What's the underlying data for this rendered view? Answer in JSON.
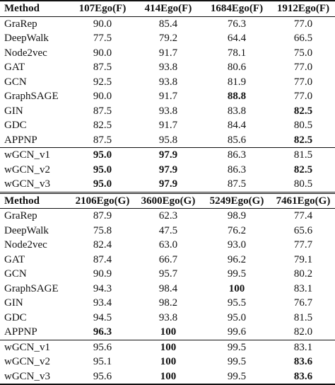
{
  "table1": {
    "headers": [
      "Method",
      "107Ego(F)",
      "414Ego(F)",
      "1684Ego(F)",
      "1912Ego(F)"
    ],
    "rows": [
      {
        "method": "GraRep",
        "values": [
          "90.0",
          "85.4",
          "76.3",
          "77.0"
        ],
        "bold": [
          false,
          false,
          false,
          false
        ]
      },
      {
        "method": "DeepWalk",
        "values": [
          "77.5",
          "79.2",
          "64.4",
          "66.5"
        ],
        "bold": [
          false,
          false,
          false,
          false
        ]
      },
      {
        "method": "Node2vec",
        "values": [
          "90.0",
          "91.7",
          "78.1",
          "75.0"
        ],
        "bold": [
          false,
          false,
          false,
          false
        ]
      },
      {
        "method": "GAT",
        "values": [
          "87.5",
          "93.8",
          "80.6",
          "77.0"
        ],
        "bold": [
          false,
          false,
          false,
          false
        ]
      },
      {
        "method": "GCN",
        "values": [
          "92.5",
          "93.8",
          "81.9",
          "77.0"
        ],
        "bold": [
          false,
          false,
          false,
          false
        ]
      },
      {
        "method": "GraphSAGE",
        "values": [
          "90.0",
          "91.7",
          "88.8",
          "77.0"
        ],
        "bold": [
          false,
          false,
          true,
          false
        ]
      },
      {
        "method": "GIN",
        "values": [
          "87.5",
          "93.8",
          "83.8",
          "82.5"
        ],
        "bold": [
          false,
          false,
          false,
          true
        ]
      },
      {
        "method": "GDC",
        "values": [
          "82.5",
          "91.7",
          "84.4",
          "80.5"
        ],
        "bold": [
          false,
          false,
          false,
          false
        ]
      },
      {
        "method": "APPNP",
        "values": [
          "87.5",
          "95.8",
          "85.6",
          "82.5"
        ],
        "bold": [
          false,
          false,
          false,
          true
        ]
      },
      {
        "method": "wGCN_v1",
        "values": [
          "95.0",
          "97.9",
          "86.3",
          "81.5"
        ],
        "bold": [
          true,
          true,
          false,
          false
        ]
      },
      {
        "method": "wGCN_v2",
        "values": [
          "95.0",
          "97.9",
          "86.3",
          "82.5"
        ],
        "bold": [
          true,
          true,
          false,
          true
        ]
      },
      {
        "method": "wGCN_v3",
        "values": [
          "95.0",
          "97.9",
          "87.5",
          "80.5"
        ],
        "bold": [
          true,
          true,
          false,
          false
        ]
      }
    ]
  },
  "table2": {
    "headers": [
      "Method",
      "2106Ego(G)",
      "3600Ego(G)",
      "5249Ego(G)",
      "7461Ego(G)"
    ],
    "rows": [
      {
        "method": "GraRep",
        "values": [
          "87.9",
          "62.3",
          "98.9",
          "77.4"
        ],
        "bold": [
          false,
          false,
          false,
          false
        ]
      },
      {
        "method": "DeepWalk",
        "values": [
          "75.8",
          "47.5",
          "76.2",
          "65.6"
        ],
        "bold": [
          false,
          false,
          false,
          false
        ]
      },
      {
        "method": "Node2vec",
        "values": [
          "82.4",
          "63.0",
          "93.0",
          "77.7"
        ],
        "bold": [
          false,
          false,
          false,
          false
        ]
      },
      {
        "method": "GAT",
        "values": [
          "87.4",
          "66.7",
          "96.2",
          "79.1"
        ],
        "bold": [
          false,
          false,
          false,
          false
        ]
      },
      {
        "method": "GCN",
        "values": [
          "90.9",
          "95.7",
          "99.5",
          "80.2"
        ],
        "bold": [
          false,
          false,
          false,
          false
        ]
      },
      {
        "method": "GraphSAGE",
        "values": [
          "94.3",
          "98.4",
          "100",
          "83.1"
        ],
        "bold": [
          false,
          false,
          true,
          false
        ]
      },
      {
        "method": "GIN",
        "values": [
          "93.4",
          "98.2",
          "95.5",
          "76.7"
        ],
        "bold": [
          false,
          false,
          false,
          false
        ]
      },
      {
        "method": "GDC",
        "values": [
          "94.5",
          "93.8",
          "95.0",
          "81.5"
        ],
        "bold": [
          false,
          false,
          false,
          false
        ]
      },
      {
        "method": "APPNP",
        "values": [
          "96.3",
          "100",
          "99.6",
          "82.0"
        ],
        "bold": [
          true,
          true,
          false,
          false
        ]
      },
      {
        "method": "wGCN_v1",
        "values": [
          "95.6",
          "100",
          "99.5",
          "83.1"
        ],
        "bold": [
          false,
          true,
          false,
          false
        ]
      },
      {
        "method": "wGCN_v2",
        "values": [
          "95.1",
          "100",
          "99.5",
          "83.6"
        ],
        "bold": [
          false,
          true,
          false,
          true
        ]
      },
      {
        "method": "wGCN_v3",
        "values": [
          "95.6",
          "100",
          "99.5",
          "83.6"
        ],
        "bold": [
          false,
          true,
          false,
          true
        ]
      }
    ]
  }
}
